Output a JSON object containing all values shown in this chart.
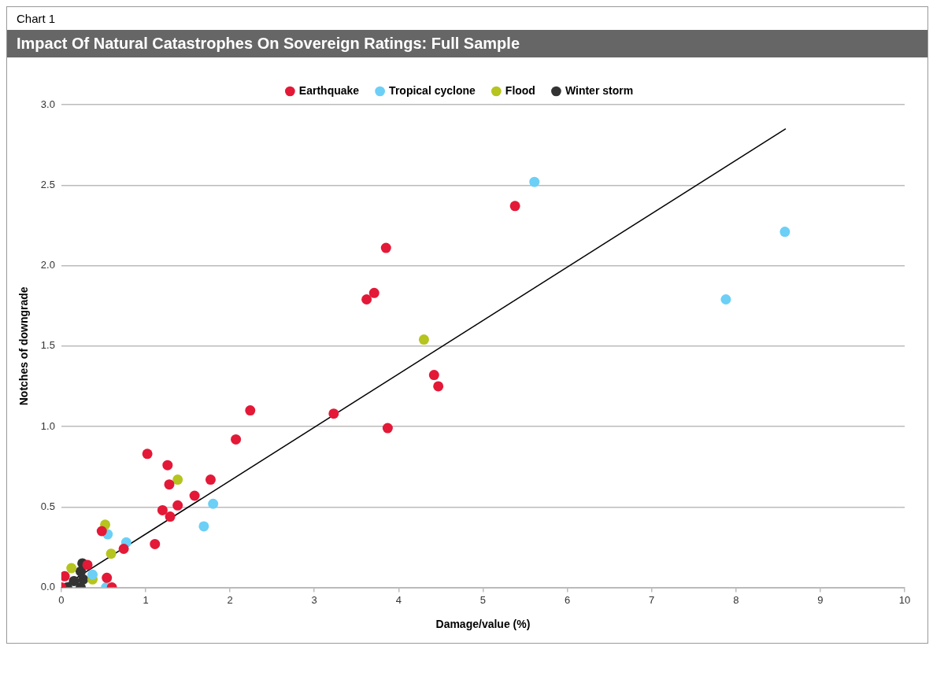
{
  "chart_data": {
    "type": "scatter",
    "title": "Impact Of Natural Catastrophes On Sovereign Ratings: Full Sample",
    "annotations": [
      "Chart 1"
    ],
    "xlabel": "Damage/value (%)",
    "ylabel": "Notches of downgrade",
    "xlim": [
      0,
      10
    ],
    "xticks": [
      0,
      1,
      2,
      3,
      4,
      5,
      6,
      7,
      8,
      9,
      10
    ],
    "ylim": [
      0,
      3
    ],
    "yticks": [
      {
        "value": 0,
        "label": "0.0"
      },
      {
        "value": 0.5,
        "label": "0.5"
      },
      {
        "value": 1,
        "label": "1.0"
      },
      {
        "value": 1.5,
        "label": "1.5"
      },
      {
        "value": 2,
        "label": "2.0"
      },
      {
        "value": 2.5,
        "label": "2.5"
      },
      {
        "value": 3,
        "label": "3.0"
      }
    ],
    "grid": "y",
    "legend": "top",
    "marker": "circle",
    "series": [
      {
        "name": "Earthquake",
        "color": "#e31937",
        "x": [
          1.02,
          1.26,
          1.28,
          1.77,
          2.07,
          2.24,
          3.23,
          3.87,
          1.58,
          1.38,
          1.2,
          1.29,
          4.42,
          4.47,
          3.85,
          3.71,
          3.62,
          5.38,
          1.11,
          0.48,
          0.74,
          0.54,
          0.6,
          0.04,
          0,
          0.31
        ],
        "values": [
          0.83,
          0.76,
          0.64,
          0.67,
          0.92,
          1.1,
          1.08,
          0.99,
          0.57,
          0.51,
          0.48,
          0.44,
          1.32,
          1.25,
          2.11,
          1.83,
          1.79,
          2.37,
          0.27,
          0.35,
          0.24,
          0.06,
          0,
          0.07,
          0,
          0.14
        ]
      },
      {
        "name": "Tropical cyclone",
        "color": "#6ccff6",
        "x": [
          5.61,
          8.58,
          7.88,
          1.8,
          1.69,
          0.55,
          0.77,
          0.53,
          0.37
        ],
        "values": [
          2.52,
          2.21,
          1.79,
          0.52,
          0.38,
          0.33,
          0.28,
          0,
          0.08
        ]
      },
      {
        "name": "Flood",
        "color": "#b5c41e",
        "x": [
          4.3,
          1.38,
          0.52,
          0.59,
          0.12,
          0.37
        ],
        "values": [
          1.54,
          0.67,
          0.39,
          0.21,
          0.12,
          0.05
        ]
      },
      {
        "name": "Winter storm",
        "color": "#333333",
        "x": [
          0.25,
          0.23,
          0.07,
          0.23,
          0.15,
          0.26
        ],
        "values": [
          0.15,
          0.1,
          0,
          0,
          0.04,
          0.05
        ]
      },
      {
        "type": "line",
        "color": "#000000",
        "marker": "none",
        "x": [
          0,
          8.59
        ],
        "values": [
          0,
          2.85
        ]
      }
    ]
  }
}
